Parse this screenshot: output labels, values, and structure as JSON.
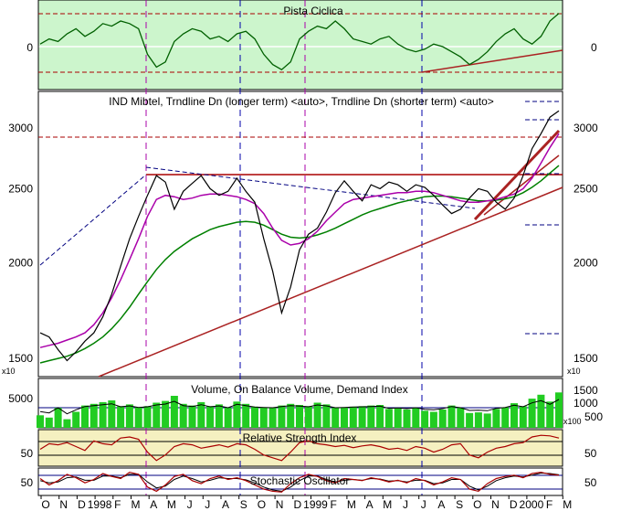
{
  "chart_data": [
    {
      "panel": "cyclic",
      "type": "line",
      "title": "Pista Ciclica",
      "y_ticks_left": [
        "0"
      ],
      "y_ticks_right": [
        "0"
      ],
      "series": [
        {
          "values": [
            0.1,
            0.3,
            0.2,
            0.5,
            0.7,
            0.4,
            0.6,
            0.9,
            0.8,
            1.0,
            0.9,
            0.7,
            -0.3,
            -0.8,
            -0.6,
            0.2,
            0.5,
            0.7,
            0.6,
            0.3,
            0.4,
            0.2,
            0.5,
            0.6,
            0.3,
            -0.3,
            -0.7,
            -0.9,
            -0.6,
            0.3,
            0.6,
            0.8,
            0.7,
            1.0,
            0.7,
            0.3,
            0.2,
            0.1,
            0.3,
            0.4,
            0.1,
            -0.1,
            -0.2,
            -0.1,
            0.1,
            0.0,
            -0.2,
            -0.4,
            -0.7,
            -0.5,
            -0.2,
            0.2,
            0.5,
            0.7,
            0.3,
            0.1,
            0.4,
            1.0,
            1.3
          ]
        }
      ],
      "colors": {
        "fill": "#ccf5cc",
        "line": "#006000",
        "levels": "#aa0000"
      }
    },
    {
      "panel": "price",
      "type": "line",
      "title": "IND Mibtel, Trndline Dn (longer term) <auto>, Trndline Dn (shorter term) <auto>",
      "yscale": "log",
      "ylim": [
        1420,
        3350
      ],
      "y_ticks": [
        1500,
        2000,
        2500,
        3000
      ],
      "axis_multiplier_label": "x10",
      "series": [
        {
          "values": [
            1620,
            1600,
            1540,
            1490,
            1530,
            1580,
            1620,
            1700,
            1820,
            1980,
            2150,
            2300,
            2450,
            2600,
            2550,
            2350,
            2480,
            2540,
            2600,
            2500,
            2450,
            2480,
            2580,
            2480,
            2400,
            2150,
            1950,
            1720,
            1860,
            2080,
            2180,
            2220,
            2330,
            2470,
            2560,
            2480,
            2410,
            2530,
            2500,
            2550,
            2530,
            2480,
            2530,
            2510,
            2450,
            2380,
            2320,
            2350,
            2430,
            2500,
            2480,
            2400,
            2350,
            2430,
            2600,
            2820,
            2950,
            3100,
            3160
          ]
        },
        {
          "values": [
            1550,
            1560,
            1570,
            1585,
            1600,
            1620,
            1660,
            1720,
            1800,
            1900,
            2020,
            2150,
            2300,
            2420,
            2450,
            2440,
            2420,
            2430,
            2450,
            2460,
            2460,
            2450,
            2440,
            2420,
            2390,
            2320,
            2220,
            2140,
            2110,
            2120,
            2150,
            2200,
            2270,
            2330,
            2390,
            2420,
            2430,
            2440,
            2450,
            2460,
            2470,
            2470,
            2480,
            2480,
            2470,
            2450,
            2430,
            2410,
            2400,
            2400,
            2410,
            2420,
            2440,
            2460,
            2500,
            2580,
            2700,
            2830,
            2950
          ]
        },
        {
          "values": [
            1480,
            1490,
            1500,
            1510,
            1525,
            1545,
            1570,
            1600,
            1640,
            1690,
            1750,
            1820,
            1890,
            1960,
            2020,
            2070,
            2110,
            2150,
            2180,
            2210,
            2230,
            2245,
            2260,
            2265,
            2260,
            2240,
            2210,
            2180,
            2160,
            2155,
            2160,
            2175,
            2195,
            2220,
            2250,
            2280,
            2310,
            2335,
            2355,
            2375,
            2395,
            2410,
            2425,
            2440,
            2445,
            2445,
            2440,
            2430,
            2420,
            2410,
            2410,
            2415,
            2425,
            2440,
            2470,
            2510,
            2560,
            2620,
            2680
          ]
        }
      ],
      "colors": {
        "price": "#000000",
        "short_ma": "#aa00aa",
        "long_ma": "#008000",
        "trend": "#aa2222",
        "resistance": "#aa0000",
        "trend_dn": "#000080"
      }
    },
    {
      "panel": "volume",
      "type": "bar",
      "title": "Volume, On Balance Volume, Demand Index",
      "y_ticks_left": [
        "5000"
      ],
      "y_ticks_right": [
        "1500",
        "1000",
        "500"
      ],
      "axis_multiplier_label": "x100",
      "series": [
        {
          "values": [
            2200,
            1800,
            3500,
            1500,
            2800,
            3900,
            4200,
            4500,
            4800,
            3800,
            4100,
            3600,
            3800,
            4400,
            4700,
            5600,
            4200,
            3900,
            4500,
            3800,
            4100,
            3500,
            4600,
            4200,
            3700,
            3600,
            3500,
            3900,
            4200,
            4000,
            3800,
            4400,
            4100,
            3500,
            3600,
            3700,
            3800,
            3900,
            4000,
            3300,
            3400,
            3200,
            3500,
            3000,
            2800,
            3200,
            3900,
            3500,
            2600,
            2700,
            2500,
            3300,
            3600,
            4300,
            3800,
            5100,
            5800,
            4600,
            6200
          ]
        }
      ],
      "colors": {
        "volume": "#22cc22",
        "obv": "#000000",
        "demand": "#000080"
      }
    },
    {
      "panel": "rsi",
      "type": "line",
      "title": "Relative Strength Index",
      "ylim": [
        20,
        85
      ],
      "y_ticks": [
        50
      ],
      "series": [
        {
          "values": [
            50,
            60,
            58,
            62,
            55,
            48,
            65,
            60,
            58,
            70,
            72,
            68,
            45,
            30,
            40,
            55,
            60,
            58,
            52,
            55,
            58,
            54,
            60,
            58,
            50,
            40,
            35,
            30,
            45,
            62,
            65,
            60,
            58,
            55,
            57,
            53,
            56,
            58,
            55,
            50,
            52,
            48,
            55,
            52,
            45,
            50,
            58,
            60,
            40,
            35,
            45,
            52,
            55,
            60,
            62,
            72,
            75,
            74,
            70
          ]
        }
      ],
      "colors": {
        "line": "#aa0000",
        "band": "#f5f0c0"
      }
    },
    {
      "panel": "stochastic",
      "type": "line",
      "title": "Stochastic Oscillator",
      "ylim": [
        20,
        85
      ],
      "y_ticks": [
        50
      ],
      "series": [
        {
          "values": [
            60,
            45,
            55,
            70,
            62,
            50,
            58,
            72,
            65,
            60,
            75,
            70,
            40,
            30,
            45,
            65,
            70,
            55,
            48,
            60,
            66,
            58,
            62,
            55,
            45,
            35,
            30,
            28,
            48,
            62,
            70,
            65,
            55,
            50,
            60,
            58,
            55,
            62,
            58,
            52,
            56,
            50,
            60,
            55,
            45,
            52,
            62,
            58,
            35,
            30,
            48,
            60,
            65,
            68,
            62,
            72,
            75,
            70,
            68
          ]
        },
        {
          "values": [
            55,
            50,
            52,
            62,
            64,
            56,
            56,
            66,
            66,
            62,
            70,
            70,
            52,
            38,
            42,
            58,
            66,
            60,
            52,
            56,
            62,
            60,
            60,
            57,
            50,
            40,
            33,
            30,
            40,
            55,
            66,
            66,
            58,
            52,
            56,
            58,
            56,
            60,
            59,
            54,
            55,
            52,
            56,
            56,
            48,
            50,
            58,
            58,
            42,
            33,
            42,
            55,
            62,
            66,
            64,
            68,
            73,
            72,
            69
          ]
        }
      ],
      "colors": {
        "k": "#aa0000",
        "d": "#000000"
      }
    }
  ],
  "x_axis": {
    "month_labels": [
      "O",
      "N",
      "D",
      "1998",
      "F",
      "M",
      "A",
      "M",
      "J",
      "J",
      "A",
      "S",
      "O",
      "N",
      "D",
      "1999",
      "F",
      "M",
      "A",
      "M",
      "J",
      "J",
      "A",
      "S",
      "O",
      "N",
      "D",
      "2000",
      "F",
      "M"
    ]
  }
}
